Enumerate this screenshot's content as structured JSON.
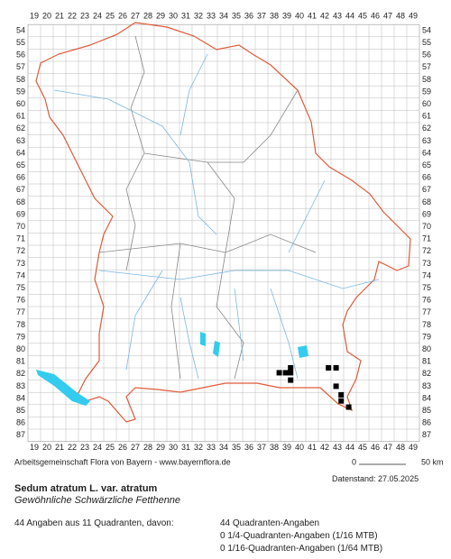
{
  "map": {
    "columns": [
      19,
      20,
      21,
      22,
      23,
      24,
      25,
      26,
      27,
      28,
      29,
      30,
      31,
      32,
      33,
      34,
      35,
      36,
      37,
      38,
      39,
      40,
      41,
      42,
      43,
      44,
      45,
      46,
      47,
      48,
      49
    ],
    "rows": [
      54,
      55,
      56,
      57,
      58,
      59,
      60,
      61,
      62,
      63,
      64,
      65,
      66,
      67,
      68,
      69,
      70,
      71,
      72,
      73,
      74,
      75,
      76,
      77,
      78,
      79,
      80,
      81,
      82,
      83,
      84,
      85,
      86,
      87
    ],
    "points": [
      {
        "x": 38.4,
        "y": 81.9
      },
      {
        "x": 38.9,
        "y": 81.9
      },
      {
        "x": 39.3,
        "y": 81.5
      },
      {
        "x": 39.3,
        "y": 81.9
      },
      {
        "x": 39.3,
        "y": 82.5
      },
      {
        "x": 42.3,
        "y": 81.5
      },
      {
        "x": 42.9,
        "y": 81.5
      },
      {
        "x": 42.9,
        "y": 83.0
      },
      {
        "x": 43.3,
        "y": 83.7
      },
      {
        "x": 43.3,
        "y": 84.2
      },
      {
        "x": 43.9,
        "y": 84.7
      }
    ],
    "credit": "Arbeitsgemeinschaft Flora von Bayern - www.bayernflora.de",
    "scale_start": "0",
    "scale_end": "50 km",
    "date": "Datenstand: 27.05.2025"
  },
  "species": {
    "name": "Sedum atratum L. var. atratum",
    "common_name": "Gewöhnliche Schwärzliche Fetthenne"
  },
  "summary": {
    "total": "44 Angaben aus 11 Quadranten, davon:",
    "details": [
      "44 Quadranten-Angaben",
      "0 1/4-Quadranten-Angaben (1/16 MTB)",
      "0 1/16-Quadranten-Angaben (1/64 MTB)"
    ]
  }
}
